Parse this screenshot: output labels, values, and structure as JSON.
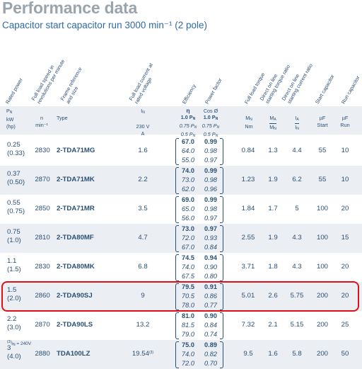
{
  "title": "Performance data",
  "subtitle": "Capacitor start capacitor run 3000 min⁻¹ (2 pole)",
  "headers": [
    "Rated power",
    "Full load speed in\nrevolutions per minute",
    "Frame reference\nand size",
    "Full load current at\nrated voltage",
    "Efficiency",
    "Power factor",
    "Full load torque",
    "Direct on line\nstarting torque ratio",
    "Direct on line\nstarting current ratio",
    "Start capacitor",
    "Run capacitor"
  ],
  "units": {
    "power": [
      "P",
      "N",
      "kW",
      "(hp)"
    ],
    "speed": [
      "n",
      "min⁻¹"
    ],
    "type": "Type",
    "current": [
      "I",
      "N",
      "230 V",
      "A"
    ],
    "eff": [
      "η",
      "1.0 P",
      "0.75 P",
      "0.5 P"
    ],
    "pf": [
      "Cos Ø",
      "1.0 P",
      "0.75 P",
      "0.5 P"
    ],
    "torque": [
      "M",
      "N",
      "Nm"
    ],
    "torque_ratio": [
      "M",
      "A",
      "M",
      "N"
    ],
    "current_ratio": [
      "I",
      "A",
      "I",
      "N"
    ],
    "start_cap": [
      "µF",
      "Start"
    ],
    "run_cap": [
      "µF",
      "Run"
    ],
    "sub_n": "N"
  },
  "rows": [
    {
      "kw": "0.25",
      "hp": "(0.33)",
      "speed": "2830",
      "type": "2-TDA71MG",
      "current": "1.6",
      "eff": [
        "67.0",
        "64.0",
        "55.0"
      ],
      "pf": [
        "0.99",
        "0.98",
        "0.97"
      ],
      "torque": "0.84",
      "mr": "1.3",
      "ir": "4.4",
      "start": "55",
      "run": "10"
    },
    {
      "kw": "0.37",
      "hp": "(0.50)",
      "speed": "2870",
      "type": "2-TDA71MK",
      "current": "2.2",
      "eff": [
        "74.0",
        "73.0",
        "62.0"
      ],
      "pf": [
        "0.99",
        "0.98",
        "0.96"
      ],
      "torque": "1.23",
      "mr": "1.9",
      "ir": "6.2",
      "start": "55",
      "run": "10"
    },
    {
      "kw": "0.55",
      "hp": "(0.75)",
      "speed": "2850",
      "type": "2-TDA71MR",
      "current": "3.5",
      "eff": [
        "69.0",
        "65.0",
        "56.0"
      ],
      "pf": [
        "0.99",
        "0.98",
        "0.97"
      ],
      "torque": "1.84",
      "mr": "1.7",
      "ir": "5",
      "start": "100",
      "run": "20"
    },
    {
      "kw": "0.75",
      "hp": "(1.0)",
      "speed": "2810",
      "type": "2-TDA80MF",
      "current": "4.7",
      "eff": [
        "73.0",
        "72.0",
        "67.0"
      ],
      "pf": [
        "0.97",
        "0.93",
        "0.84"
      ],
      "torque": "2.55",
      "mr": "1.9",
      "ir": "4.3",
      "start": "100",
      "run": "15"
    },
    {
      "kw": "1.1",
      "hp": "(1.5)",
      "speed": "2830",
      "type": "2-TDA80MK",
      "current": "6.8",
      "eff": [
        "74.5",
        "74.0",
        "67.5"
      ],
      "pf": [
        "0.94",
        "0.90",
        "0.80"
      ],
      "torque": "3.71",
      "mr": "1.8",
      "ir": "4.3",
      "start": "100",
      "run": "20"
    },
    {
      "kw": "1.5",
      "hp": "(2.0)",
      "speed": "2860",
      "type": "2-TDA90SJ",
      "current": "9",
      "eff": [
        "79.5",
        "70.5",
        "78.0"
      ],
      "pf": [
        "0.91",
        "0.86",
        "0.77"
      ],
      "torque": "5.01",
      "mr": "2.6",
      "ir": "5.75",
      "start": "200",
      "run": "20"
    },
    {
      "kw": "2.2",
      "hp": "(3.0)",
      "speed": "2870",
      "type": "2-TDA90LS",
      "current": "13.2",
      "eff": [
        "81.0",
        "81.5",
        "79.0"
      ],
      "pf": [
        "0.90",
        "0.84",
        "0.74"
      ],
      "torque": "7.32",
      "mr": "2.1",
      "ir": "5.15",
      "start": "200",
      "run": "25"
    },
    {
      "kw": "3",
      "hp": "(4.0)",
      "speed": "2880",
      "type": "TDA100LZ",
      "current": "19.54",
      "current_note": "(3)",
      "eff": [
        "75.0",
        "74.0",
        "72.0"
      ],
      "pf": [
        "0.89",
        "0.82",
        "0.70"
      ],
      "torque": "9.5",
      "mr": "1.6",
      "ir": "5.8",
      "start": "200",
      "run": "50"
    }
  ],
  "footnote": {
    "mark": "(3)",
    "text": " = 240V",
    "symbol": "I",
    "sub": "N"
  },
  "highlight_color": "#e0101a",
  "text_color": "#2a4f75",
  "title_color": "#9aa4ad"
}
